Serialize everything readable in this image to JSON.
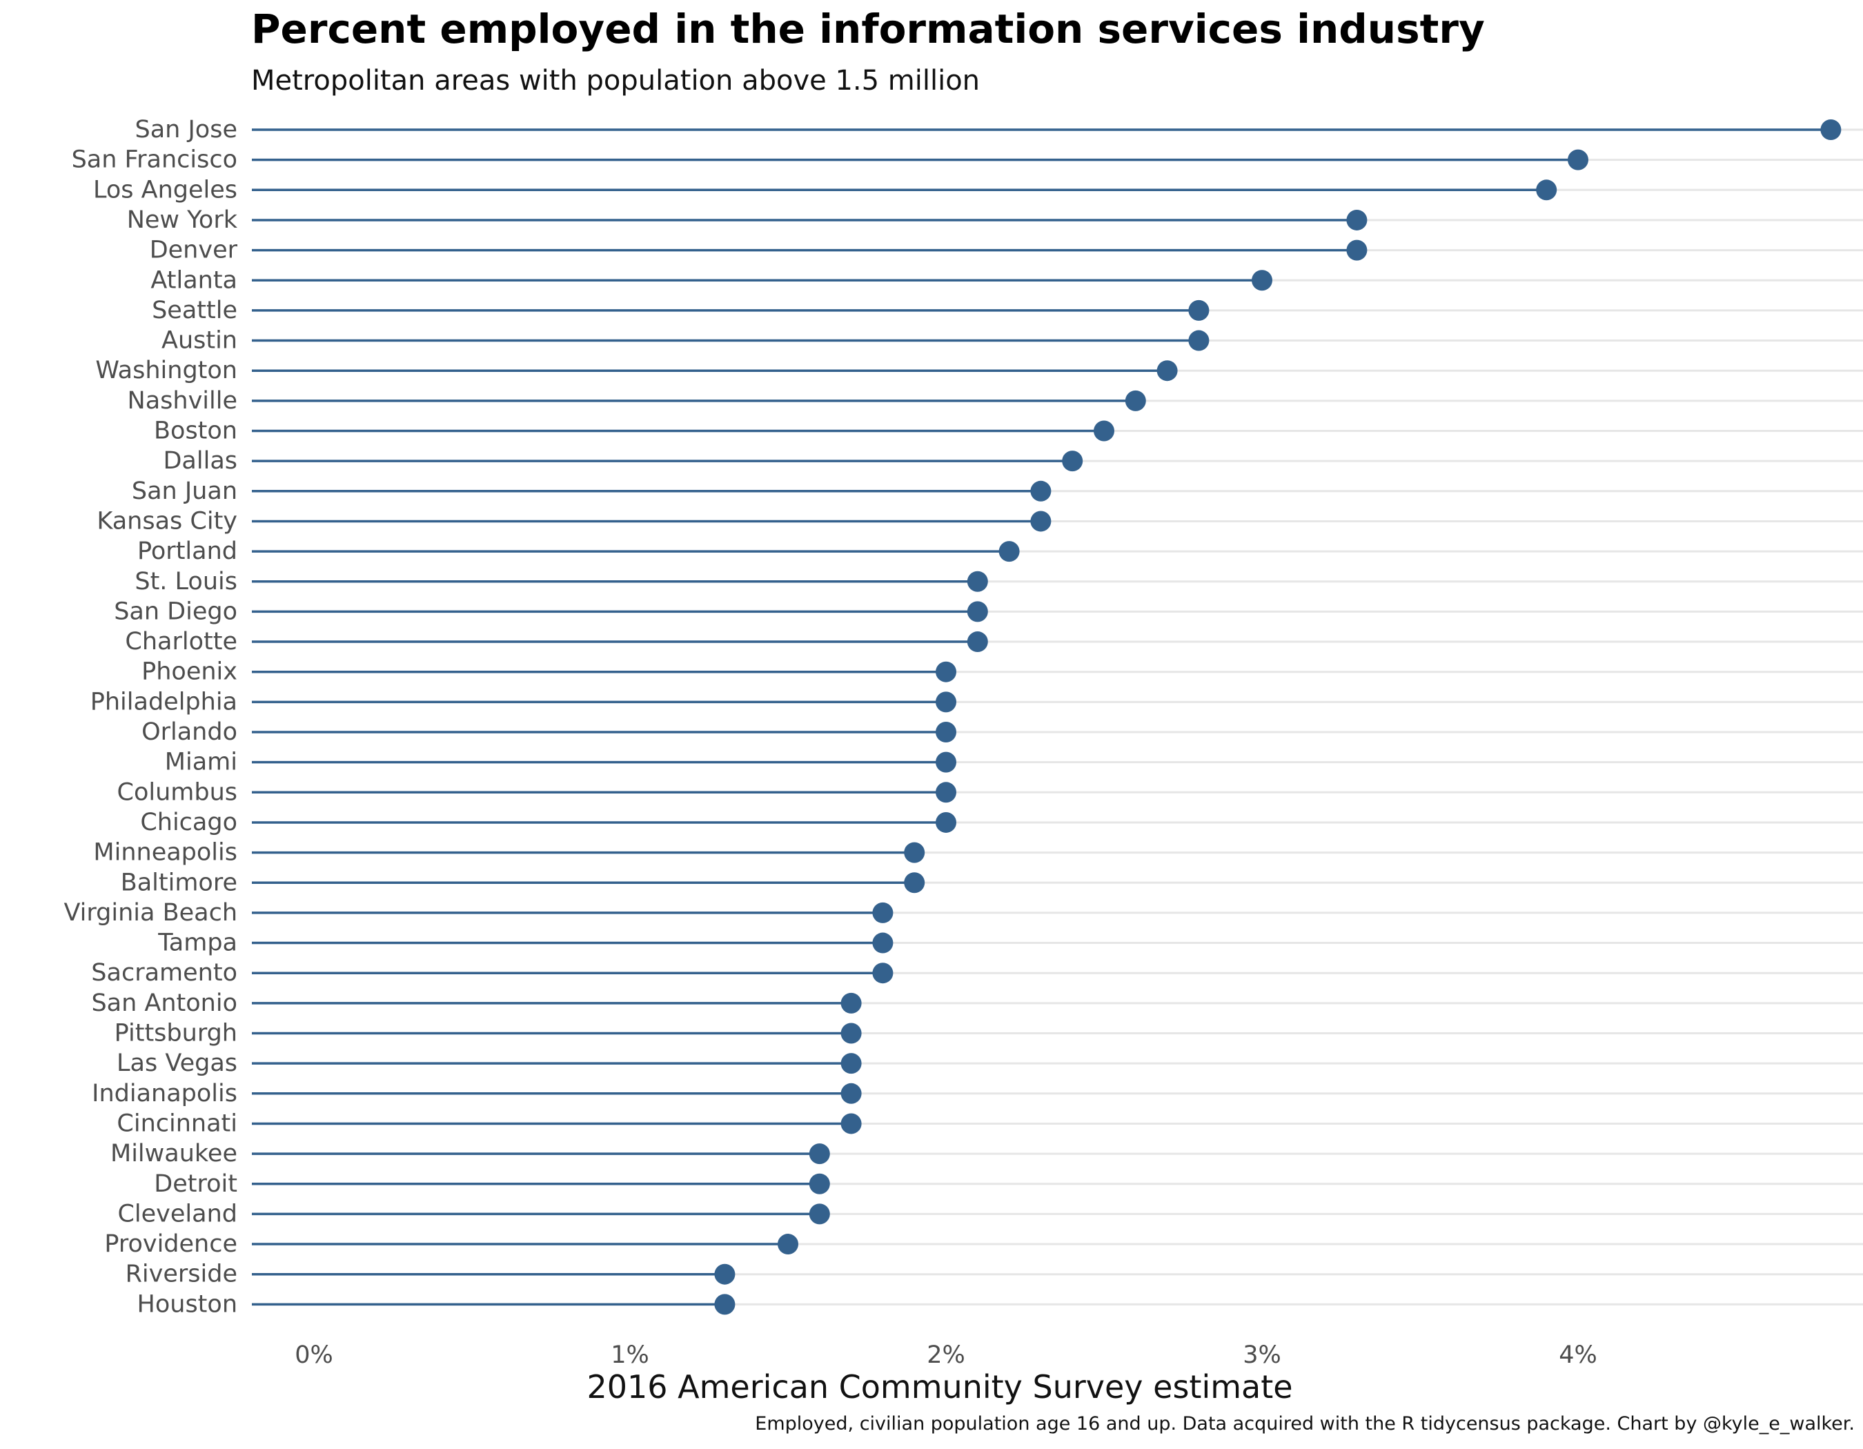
{
  "chart_data": {
    "type": "scatter",
    "style": "lollipop",
    "title": "Percent employed in the information services industry",
    "subtitle": "Metropolitan areas with population above 1.5 million",
    "xlabel": "2016 American Community Survey estimate",
    "caption": "Employed, civilian population age 16 and up. Data acquired with the R tidycensus package. Chart by @kyle_e_walker.",
    "x_ticks": [
      "0%",
      "1%",
      "2%",
      "3%",
      "4%"
    ],
    "xlim": [
      0,
      5
    ],
    "grid": "horizontal",
    "color": "#34618D",
    "categories": [
      "San Jose",
      "San Francisco",
      "Los Angeles",
      "New York",
      "Denver",
      "Atlanta",
      "Seattle",
      "Austin",
      "Washington",
      "Nashville",
      "Boston",
      "Dallas",
      "San Juan",
      "Kansas City",
      "Portland",
      "St. Louis",
      "San Diego",
      "Charlotte",
      "Phoenix",
      "Philadelphia",
      "Orlando",
      "Miami",
      "Columbus",
      "Chicago",
      "Minneapolis",
      "Baltimore",
      "Virginia Beach",
      "Tampa",
      "Sacramento",
      "San Antonio",
      "Pittsburgh",
      "Las Vegas",
      "Indianapolis",
      "Cincinnati",
      "Milwaukee",
      "Detroit",
      "Cleveland",
      "Providence",
      "Riverside",
      "Houston"
    ],
    "values": [
      4.8,
      4.0,
      3.9,
      3.3,
      3.3,
      3.0,
      2.8,
      2.8,
      2.7,
      2.6,
      2.5,
      2.4,
      2.3,
      2.3,
      2.2,
      2.1,
      2.1,
      2.1,
      2.0,
      2.0,
      2.0,
      2.0,
      2.0,
      2.0,
      1.9,
      1.9,
      1.8,
      1.8,
      1.8,
      1.7,
      1.7,
      1.7,
      1.7,
      1.7,
      1.6,
      1.6,
      1.6,
      1.5,
      1.3,
      1.3
    ]
  }
}
